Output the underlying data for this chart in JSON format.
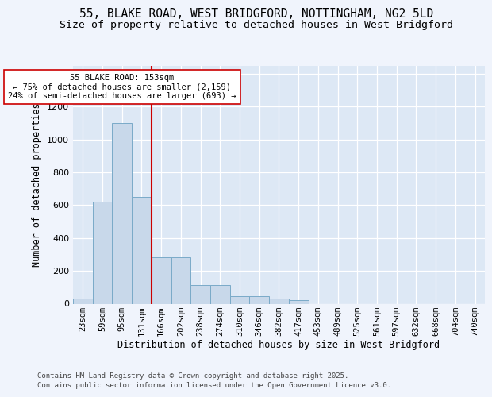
{
  "title_line1": "55, BLAKE ROAD, WEST BRIDGFORD, NOTTINGHAM, NG2 5LD",
  "title_line2": "Size of property relative to detached houses in West Bridgford",
  "xlabel": "Distribution of detached houses by size in West Bridgford",
  "ylabel": "Number of detached properties",
  "footer_line1": "Contains HM Land Registry data © Crown copyright and database right 2025.",
  "footer_line2": "Contains public sector information licensed under the Open Government Licence v3.0.",
  "categories": [
    "23sqm",
    "59sqm",
    "95sqm",
    "131sqm",
    "166sqm",
    "202sqm",
    "238sqm",
    "274sqm",
    "310sqm",
    "346sqm",
    "382sqm",
    "417sqm",
    "453sqm",
    "489sqm",
    "525sqm",
    "561sqm",
    "597sqm",
    "632sqm",
    "668sqm",
    "704sqm",
    "740sqm"
  ],
  "values": [
    30,
    620,
    1100,
    650,
    285,
    285,
    115,
    115,
    45,
    45,
    30,
    20,
    0,
    0,
    0,
    0,
    0,
    0,
    0,
    0,
    0
  ],
  "bar_color": "#c8d8ea",
  "bar_edge_color": "#7aaac8",
  "vline_color": "#cc0000",
  "annotation_text": "55 BLAKE ROAD: 153sqm\n← 75% of detached houses are smaller (2,159)\n24% of semi-detached houses are larger (693) →",
  "annotation_box_color": "#ffffff",
  "annotation_box_edge": "#cc0000",
  "ylim": [
    0,
    1450
  ],
  "bg_color": "#f0f4fc",
  "plot_bg_color": "#dde8f5",
  "title_fontsize": 10.5,
  "subtitle_fontsize": 9.5,
  "axis_label_fontsize": 8.5,
  "tick_fontsize": 7.5,
  "footer_fontsize": 6.5
}
